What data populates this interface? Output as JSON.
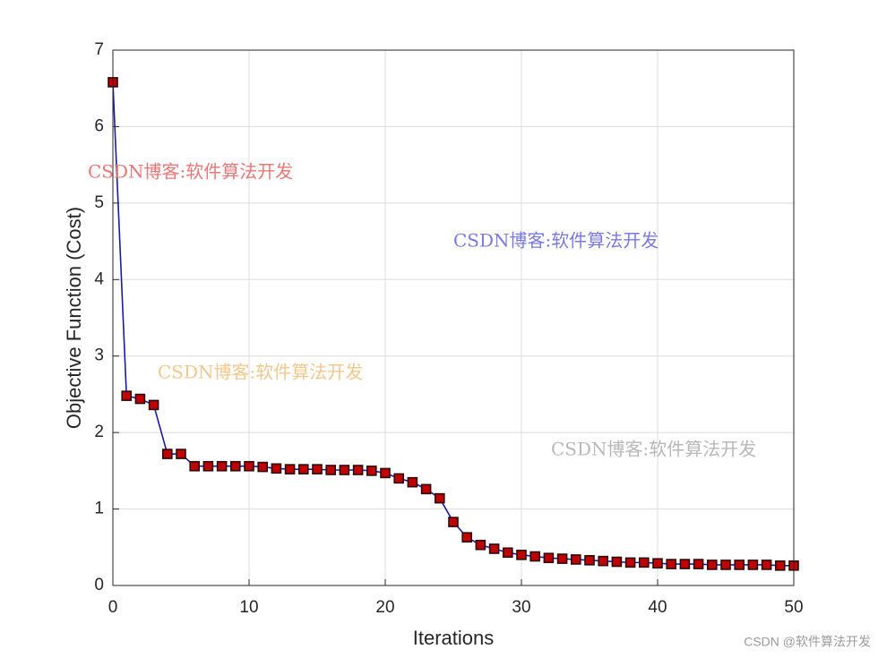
{
  "chart_data": {
    "type": "line",
    "xlabel": "Iterations",
    "ylabel": "Objective Function (Cost)",
    "x": [
      0,
      1,
      2,
      3,
      4,
      5,
      6,
      7,
      8,
      9,
      10,
      11,
      12,
      13,
      14,
      15,
      16,
      17,
      18,
      19,
      20,
      21,
      22,
      23,
      24,
      25,
      26,
      27,
      28,
      29,
      30,
      31,
      32,
      33,
      34,
      35,
      36,
      37,
      38,
      39,
      40,
      41,
      42,
      43,
      44,
      45,
      46,
      47,
      48,
      49,
      50
    ],
    "series": [
      {
        "color": "#1a1aa6",
        "marker_color": "#c00000",
        "values": [
          6.58,
          2.48,
          2.44,
          2.36,
          1.72,
          1.72,
          1.56,
          1.56,
          1.56,
          1.56,
          1.56,
          1.55,
          1.53,
          1.52,
          1.52,
          1.52,
          1.51,
          1.51,
          1.51,
          1.5,
          1.47,
          1.4,
          1.35,
          1.26,
          1.14,
          0.83,
          0.63,
          0.53,
          0.48,
          0.43,
          0.4,
          0.38,
          0.36,
          0.35,
          0.34,
          0.33,
          0.32,
          0.31,
          0.3,
          0.3,
          0.29,
          0.28,
          0.28,
          0.28,
          0.27,
          0.27,
          0.27,
          0.27,
          0.27,
          0.26,
          0.26
        ]
      }
    ],
    "xlim": [
      0,
      50
    ],
    "xticks": [
      0,
      10,
      20,
      30,
      40,
      50
    ],
    "ylim": [
      0,
      7
    ],
    "yticks": [
      0,
      1,
      2,
      3,
      4,
      5,
      6,
      7
    ],
    "grid": true,
    "annotations": [
      {
        "text": "CSDN博客:软件算法开发",
        "color": "#e87878"
      },
      {
        "text": "CSDN博客:软件算法开发",
        "color": "#7a7ae0"
      },
      {
        "text": "CSDN博客:软件算法开发",
        "color": "#f0c890"
      },
      {
        "text": "CSDN博客:软件算法开发",
        "color": "#b8b8b8"
      }
    ],
    "footer": "CSDN @软件算法开发"
  }
}
